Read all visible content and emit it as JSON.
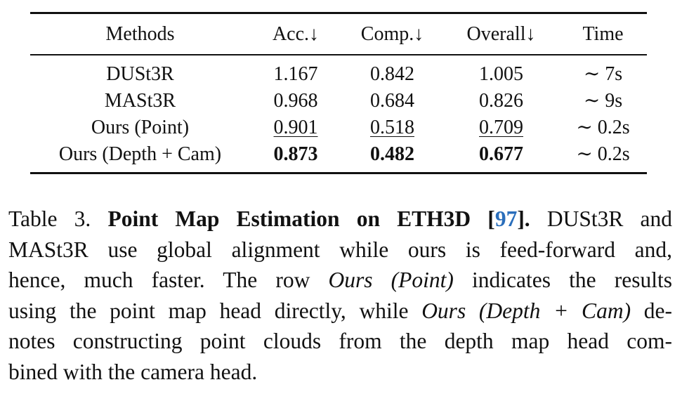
{
  "table": {
    "headers": [
      "Methods",
      "Acc.↓",
      "Comp.↓",
      "Overall↓",
      "Time"
    ],
    "rows": [
      {
        "method": "DUSt3R",
        "acc": "1.167",
        "comp": "0.842",
        "overall": "1.005",
        "time": "∼ 7s"
      },
      {
        "method": "MASt3R",
        "acc": "0.968",
        "comp": "0.684",
        "overall": "0.826",
        "time": "∼ 9s"
      },
      {
        "method": "Ours (Point)",
        "acc": "0.901",
        "comp": "0.518",
        "overall": "0.709",
        "time": "∼ 0.2s"
      },
      {
        "method": "Ours (Depth + Cam)",
        "acc": "0.873",
        "comp": "0.482",
        "overall": "0.677",
        "time": "∼ 0.2s"
      }
    ]
  },
  "caption": {
    "label": "Table 3.",
    "title_a": "Point Map Estimation on ETH3D [",
    "citation": "97",
    "title_b": "].",
    "l1_tail": "DUSt3R and",
    "l2": "MASt3R use global alignment while ours is feed-forward and,",
    "l3_a": "hence, much faster.  The row ",
    "l3_i": "Ours (Point)",
    "l3_b": " indicates the results",
    "l4_a": "using the point map head directly, while ",
    "l4_i": "Ours (Depth + Cam)",
    "l4_b": " de-",
    "l5": "notes constructing point clouds from the depth map head com-",
    "l6": "bined with the camera head."
  }
}
